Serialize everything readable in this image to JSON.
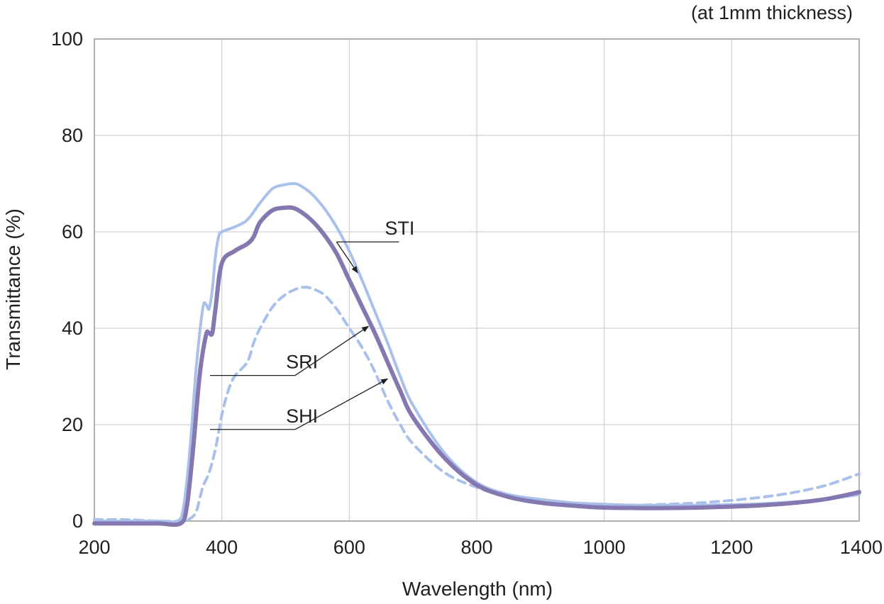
{
  "chart_data": {
    "type": "line",
    "title": "",
    "note": "(at 1mm thickness)",
    "xlabel": "Wavelength (nm)",
    "ylabel": "Transmittance (%)",
    "xlim": [
      200,
      1400
    ],
    "ylim": [
      0,
      100
    ],
    "xticks": [
      200,
      400,
      600,
      800,
      1000,
      1200,
      1400
    ],
    "yticks": [
      0,
      20,
      40,
      60,
      80,
      100
    ],
    "grid": true,
    "series": [
      {
        "name": "STI",
        "color": "#a9c0ea",
        "style": "solid",
        "x": [
          200,
          250,
          300,
          330,
          340,
          350,
          360,
          370,
          375,
          380,
          385,
          390,
          395,
          400,
          420,
          440,
          460,
          480,
          500,
          510,
          520,
          540,
          560,
          580,
          600,
          620,
          640,
          660,
          680,
          700,
          750,
          800,
          850,
          900,
          950,
          1000,
          1050,
          1100,
          1150,
          1200,
          1250,
          1300,
          1350,
          1400
        ],
        "y": [
          0,
          0,
          0,
          0,
          3,
          15,
          32,
          44,
          45,
          44,
          48,
          55,
          59,
          60,
          61,
          62.5,
          66,
          69,
          69.8,
          70,
          69.8,
          68,
          65,
          61,
          56,
          50,
          43.5,
          37,
          30,
          24,
          14,
          8,
          5.5,
          4.5,
          3.8,
          3.5,
          3.3,
          3.3,
          3.3,
          3.4,
          3.6,
          4,
          4.6,
          5.5
        ]
      },
      {
        "name": "SRI",
        "color": "#8577b0",
        "style": "solid",
        "x": [
          200,
          250,
          300,
          335,
          345,
          355,
          365,
          375,
          380,
          385,
          390,
          400,
          420,
          440,
          450,
          460,
          480,
          500,
          510,
          520,
          540,
          560,
          580,
          600,
          620,
          640,
          660,
          680,
          700,
          750,
          800,
          850,
          900,
          950,
          1000,
          1050,
          1100,
          1150,
          1200,
          1250,
          1300,
          1350,
          1400
        ],
        "y": [
          -0.5,
          -0.5,
          -0.5,
          -0.5,
          3,
          15,
          30,
          38.5,
          39,
          39,
          44,
          53.5,
          56,
          57.5,
          59,
          62,
          64.5,
          65,
          65,
          64.5,
          62.5,
          59.5,
          55.5,
          50,
          44.5,
          39,
          33,
          27,
          21.5,
          13,
          7.5,
          5,
          3.8,
          3.2,
          2.8,
          2.7,
          2.7,
          2.8,
          3,
          3.3,
          3.8,
          4.6,
          6
        ]
      },
      {
        "name": "SHI",
        "color": "#a9c0ea",
        "style": "dashed",
        "x": [
          200,
          250,
          300,
          340,
          350,
          360,
          370,
          380,
          390,
          400,
          410,
          420,
          440,
          450,
          460,
          480,
          500,
          520,
          530,
          540,
          560,
          580,
          600,
          620,
          640,
          660,
          680,
          700,
          750,
          800,
          850,
          900,
          950,
          1000,
          1050,
          1100,
          1150,
          1200,
          1250,
          1300,
          1350,
          1400
        ],
        "y": [
          0.3,
          0.3,
          0,
          0,
          0.5,
          2,
          7,
          10,
          15,
          22,
          27,
          30,
          33,
          37,
          40,
          44.5,
          47,
          48.3,
          48.5,
          48.3,
          47,
          44,
          40,
          36,
          31,
          25,
          20,
          16,
          10,
          7,
          5,
          4.2,
          3.6,
          3.3,
          3.3,
          3.5,
          3.8,
          4.3,
          5,
          6,
          7.5,
          9.8
        ]
      }
    ],
    "annotations": [
      {
        "label": "STI",
        "target": [
          613,
          51.5
        ],
        "label_anchor": [
          600,
          58.2
        ],
        "elbow": [
          550,
          57.5
        ]
      },
      {
        "label": "SRI",
        "target": [
          630,
          40.4
        ],
        "label_anchor": [
          445,
          30.5
        ],
        "elbow": [
          515,
          30
        ]
      },
      {
        "label": "SHI",
        "target": [
          660,
          29.5
        ],
        "label_anchor": [
          445,
          19.3
        ],
        "elbow": [
          515,
          18.5
        ]
      }
    ]
  }
}
